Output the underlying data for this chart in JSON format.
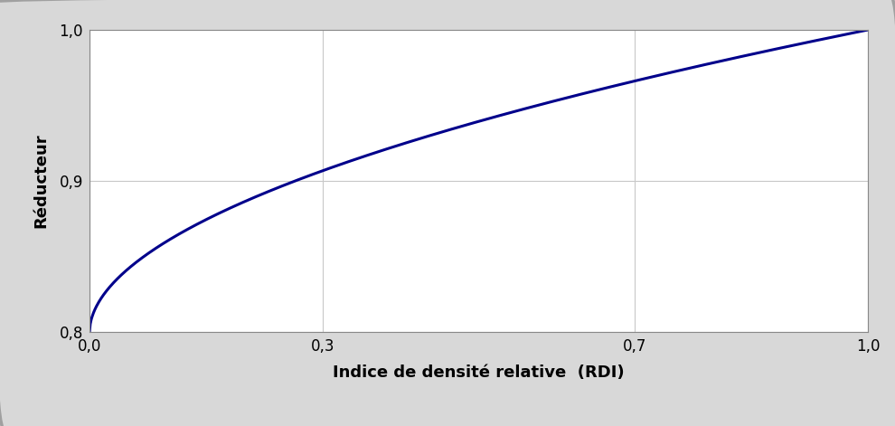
{
  "xlabel": "Indice de densité relative  (RDI)",
  "ylabel": "Réducteur",
  "xlim": [
    0.0,
    1.0
  ],
  "ylim": [
    0.8,
    1.0
  ],
  "xticks": [
    0.0,
    0.3,
    0.7,
    1.0
  ],
  "xtick_labels": [
    "0,0",
    "0,3",
    "0,7",
    "1,0"
  ],
  "yticks": [
    0.8,
    0.9,
    1.0
  ],
  "ytick_labels": [
    "0,8",
    "0,9",
    "1,0"
  ],
  "line_color": "#00008B",
  "line_width": 2.2,
  "background_color": "#FFFFFF",
  "grid_color": "#C8C8C8",
  "curve_exponent": 0.52,
  "xlabel_fontsize": 13,
  "ylabel_fontsize": 13,
  "tick_fontsize": 12,
  "fig_background": "#D8D8D8"
}
